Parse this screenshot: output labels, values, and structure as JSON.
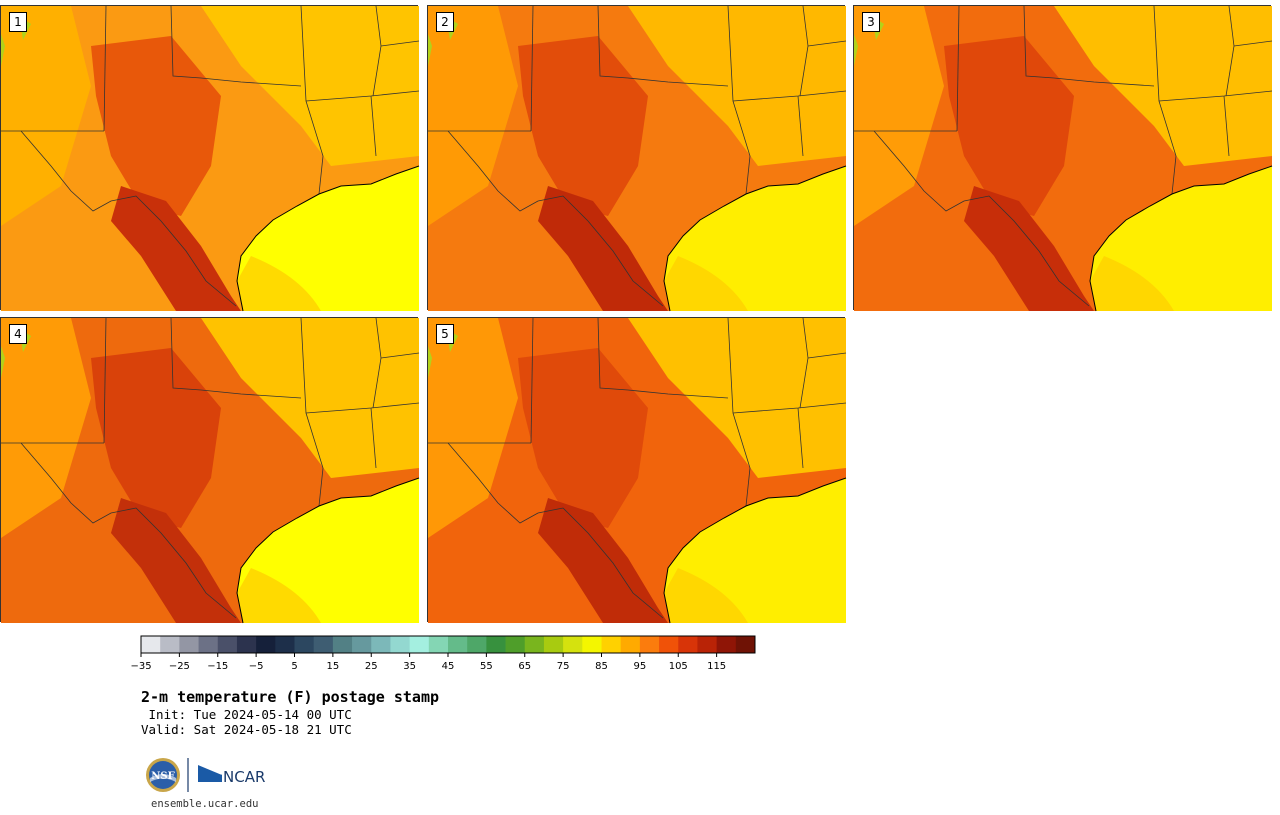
{
  "plot": {
    "title": "2-m temperature (F) postage stamp",
    "init": " Init: Tue 2024-05-14 00 UTC",
    "valid": "Valid: Sat 2024-05-18 21 UTC"
  },
  "panels": [
    {
      "label": "1"
    },
    {
      "label": "2"
    },
    {
      "label": "3"
    },
    {
      "label": "4"
    },
    {
      "label": "5"
    }
  ],
  "colorbar": {
    "ticks": [
      "−35",
      "−25",
      "−15",
      "−5",
      "5",
      "15",
      "25",
      "35",
      "45",
      "55",
      "65",
      "75",
      "85",
      "95",
      "105",
      "115"
    ],
    "colors": [
      "#e6e8ec",
      "#b9bcc6",
      "#9396a4",
      "#6c7186",
      "#4a5069",
      "#2c334e",
      "#15203a",
      "#1d2f4a",
      "#2c4760",
      "#3e5d72",
      "#528085",
      "#66999e",
      "#7cb8b9",
      "#93d8d0",
      "#a4efe0",
      "#84d6b4",
      "#64bb8a",
      "#4ea768",
      "#37913e",
      "#4f9e2a",
      "#79b51e",
      "#a8cb10",
      "#d5e20e",
      "#f4f600",
      "#ffd100",
      "#ffaa00",
      "#fb7c0d",
      "#f05208",
      "#d83408",
      "#b92306",
      "#8f1506",
      "#6f1205"
    ]
  },
  "logos": {
    "nsf": "NSF",
    "ncar": "NCAR"
  },
  "footer": {
    "url": "ensemble.ucar.edu"
  }
}
